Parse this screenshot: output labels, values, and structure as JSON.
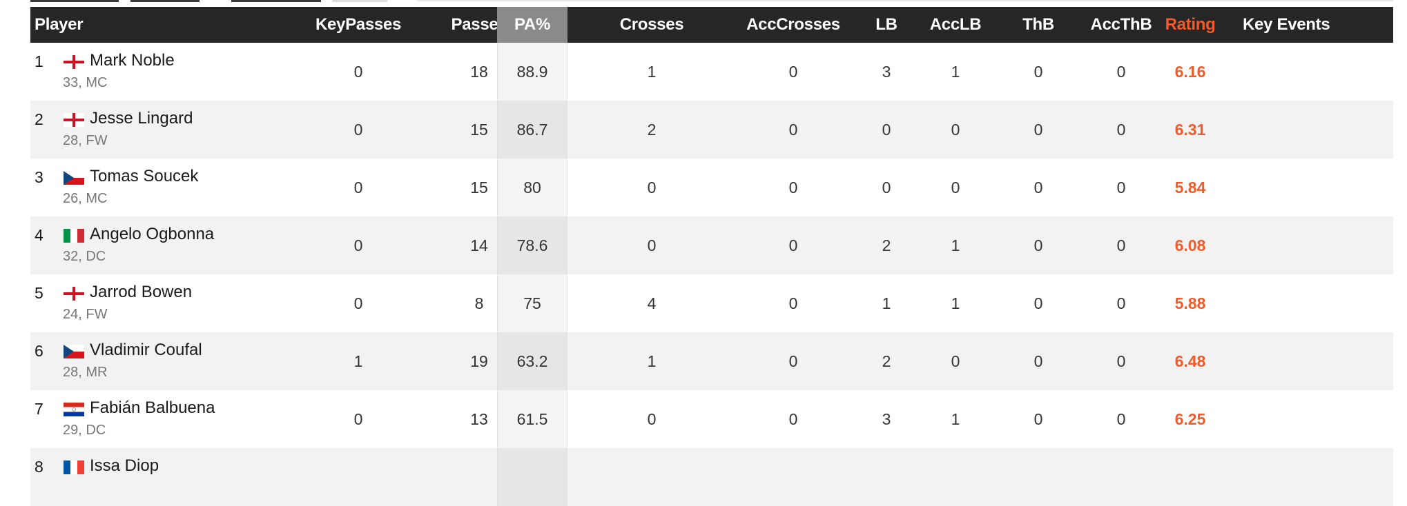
{
  "columns": {
    "player": "Player",
    "key_passes": "KeyPasses",
    "passes": "Passes",
    "pa": "PA%",
    "crosses": "Crosses",
    "acc_crosses": "AccCrosses",
    "lb": "LB",
    "acc_lb": "AccLB",
    "thb": "ThB",
    "acc_thb": "AccThB",
    "rating": "Rating",
    "key_events": "Key Events"
  },
  "colors": {
    "header_bg": "#262626",
    "rating": "#f15a29",
    "sorted_header_bg": "#8a8a8a"
  },
  "rows": [
    {
      "rank": "1",
      "flag": "england-flag-icon",
      "name": "Mark Noble",
      "meta": "33, MC",
      "key_passes": "0",
      "passes": "18",
      "pa": "88.9",
      "crosses": "1",
      "acc_crosses": "0",
      "lb": "3",
      "acc_lb": "1",
      "thb": "0",
      "acc_thb": "0",
      "rating": "6.16"
    },
    {
      "rank": "2",
      "flag": "england-flag-icon",
      "name": "Jesse Lingard",
      "meta": "28, FW",
      "key_passes": "0",
      "passes": "15",
      "pa": "86.7",
      "crosses": "2",
      "acc_crosses": "0",
      "lb": "0",
      "acc_lb": "0",
      "thb": "0",
      "acc_thb": "0",
      "rating": "6.31"
    },
    {
      "rank": "3",
      "flag": "czech-flag-icon",
      "name": "Tomas Soucek",
      "meta": "26, MC",
      "key_passes": "0",
      "passes": "15",
      "pa": "80",
      "crosses": "0",
      "acc_crosses": "0",
      "lb": "0",
      "acc_lb": "0",
      "thb": "0",
      "acc_thb": "0",
      "rating": "5.84"
    },
    {
      "rank": "4",
      "flag": "italy-flag-icon",
      "name": "Angelo Ogbonna",
      "meta": "32, DC",
      "key_passes": "0",
      "passes": "14",
      "pa": "78.6",
      "crosses": "0",
      "acc_crosses": "0",
      "lb": "2",
      "acc_lb": "1",
      "thb": "0",
      "acc_thb": "0",
      "rating": "6.08"
    },
    {
      "rank": "5",
      "flag": "england-flag-icon",
      "name": "Jarrod Bowen",
      "meta": "24, FW",
      "key_passes": "0",
      "passes": "8",
      "pa": "75",
      "crosses": "4",
      "acc_crosses": "0",
      "lb": "1",
      "acc_lb": "1",
      "thb": "0",
      "acc_thb": "0",
      "rating": "5.88"
    },
    {
      "rank": "6",
      "flag": "czech-flag-icon",
      "name": "Vladimir Coufal",
      "meta": "28, MR",
      "key_passes": "1",
      "passes": "19",
      "pa": "63.2",
      "crosses": "1",
      "acc_crosses": "0",
      "lb": "2",
      "acc_lb": "0",
      "thb": "0",
      "acc_thb": "0",
      "rating": "6.48"
    },
    {
      "rank": "7",
      "flag": "paraguay-flag-icon",
      "name": "Fabián Balbuena",
      "meta": "29, DC",
      "key_passes": "0",
      "passes": "13",
      "pa": "61.5",
      "crosses": "0",
      "acc_crosses": "0",
      "lb": "3",
      "acc_lb": "1",
      "thb": "0",
      "acc_thb": "0",
      "rating": "6.25"
    },
    {
      "rank": "8",
      "flag": "france-flag-icon",
      "name": "Issa Diop",
      "meta": "",
      "key_passes": "",
      "passes": "",
      "pa": "",
      "crosses": "",
      "acc_crosses": "",
      "lb": "",
      "acc_lb": "",
      "thb": "",
      "acc_thb": "",
      "rating": ""
    }
  ]
}
